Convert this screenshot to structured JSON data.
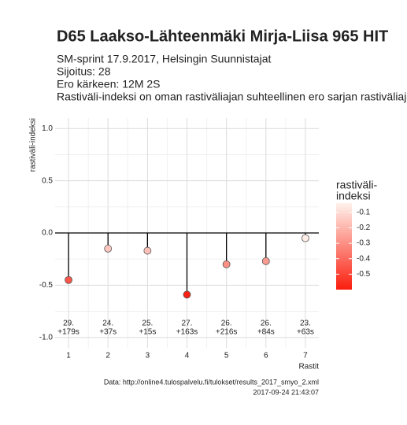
{
  "chart_data": {
    "type": "lollipop",
    "title": "D65 Laakso-Lähteenmäki Mirja-Liisa 965 HIT",
    "subtitle": [
      "SM-sprint 17.9.2017, Helsingin Suunnistajat",
      "Sijoitus: 28",
      "Ero kärkeen: 12M 2S",
      "Rastiväli-indeksi on oman rastiväliajan suhteellinen ero sarjan rastiväliajan keskiarvoon"
    ],
    "x": [
      1,
      2,
      3,
      4,
      5,
      6,
      7
    ],
    "values": [
      -0.45,
      -0.15,
      -0.17,
      -0.59,
      -0.3,
      -0.27,
      -0.05
    ],
    "point_labels": [
      [
        "29.",
        "+179s"
      ],
      [
        "24.",
        "+37s"
      ],
      [
        "25.",
        "+15s"
      ],
      [
        "27.",
        "+163s"
      ],
      [
        "26.",
        "+216s"
      ],
      [
        "26.",
        "+84s"
      ],
      [
        "23.",
        "+63s"
      ]
    ],
    "xlim": [
      0.66,
      7.34
    ],
    "xticks": [
      1,
      2,
      3,
      4,
      5,
      6,
      7
    ],
    "ylim": [
      -1.1,
      1.1
    ],
    "yticks": [
      {
        "value": -1,
        "label": "-1.0"
      },
      {
        "value": -0.5,
        "label": "-0.5"
      },
      {
        "value": 0,
        "label": "0.0"
      },
      {
        "value": 0.5,
        "label": "0.5"
      },
      {
        "value": 1,
        "label": "1.0"
      }
    ],
    "xlabel": "Rastit",
    "ylabel": "rastiväli-indeksi",
    "grid": true,
    "legend_title": [
      "rastiväli-",
      "indeksi"
    ],
    "color_low": "#fa1e0e",
    "color_high": "#fff2ec",
    "color_lim": [
      -0.6,
      -0.04
    ],
    "color_ticks": [
      -0.1,
      -0.2,
      -0.3,
      -0.4,
      -0.5
    ],
    "caption": [
      "Data: http://online4.tulospalvelu.fi/tulokset/results_2017_smyo_2.xml",
      "2017-09-24 21:43:07"
    ]
  }
}
